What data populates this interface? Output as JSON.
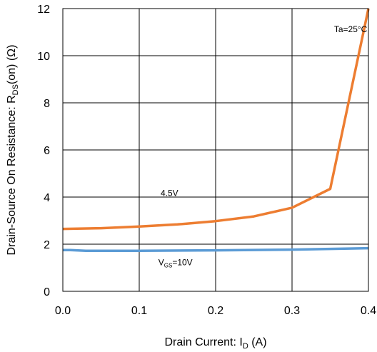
{
  "chart_data": {
    "type": "line",
    "title": "",
    "xlabel": "Drain Current: I",
    "xlabel_sub": "D",
    "xlabel_unit": " (A)",
    "ylabel": "Drain-Source On Resistance: R",
    "ylabel_sub": "DS",
    "ylabel_unit": "(on) (Ω)",
    "xlim": [
      0,
      0.4
    ],
    "ylim": [
      0,
      12
    ],
    "grid": true,
    "xticks": [
      0.0,
      0.1,
      0.2,
      0.3,
      0.4
    ],
    "xtick_labels": [
      "0.0",
      "0.1",
      "0.2",
      "0.3",
      "0.4"
    ],
    "yticks": [
      0,
      2,
      4,
      6,
      8,
      10,
      12
    ],
    "ytick_labels": [
      "0",
      "2",
      "4",
      "6",
      "8",
      "10",
      "12"
    ],
    "series": [
      {
        "name": "4.5V",
        "color": "#ed7d31",
        "x": [
          0.0,
          0.05,
          0.1,
          0.15,
          0.2,
          0.25,
          0.3,
          0.35,
          0.4
        ],
        "y": [
          2.65,
          2.68,
          2.75,
          2.84,
          2.98,
          3.18,
          3.55,
          4.35,
          12.0
        ]
      },
      {
        "name": "V",
        "name_sub": "GS",
        "name_suffix": "=10V",
        "color": "#5b9bd5",
        "x": [
          0.0,
          0.01,
          0.03,
          0.1,
          0.2,
          0.3,
          0.4
        ],
        "y": [
          1.75,
          1.75,
          1.72,
          1.72,
          1.74,
          1.77,
          1.83
        ]
      }
    ],
    "annotations": [
      {
        "text": "Ta=25°C",
        "x": 0.355,
        "y": 11.0
      },
      {
        "text": "4.5V",
        "x": 0.128,
        "y": 4.05
      },
      {
        "text": "V",
        "sub": "GS",
        "suffix": "=10V",
        "x": 0.125,
        "y": 1.1
      }
    ]
  }
}
